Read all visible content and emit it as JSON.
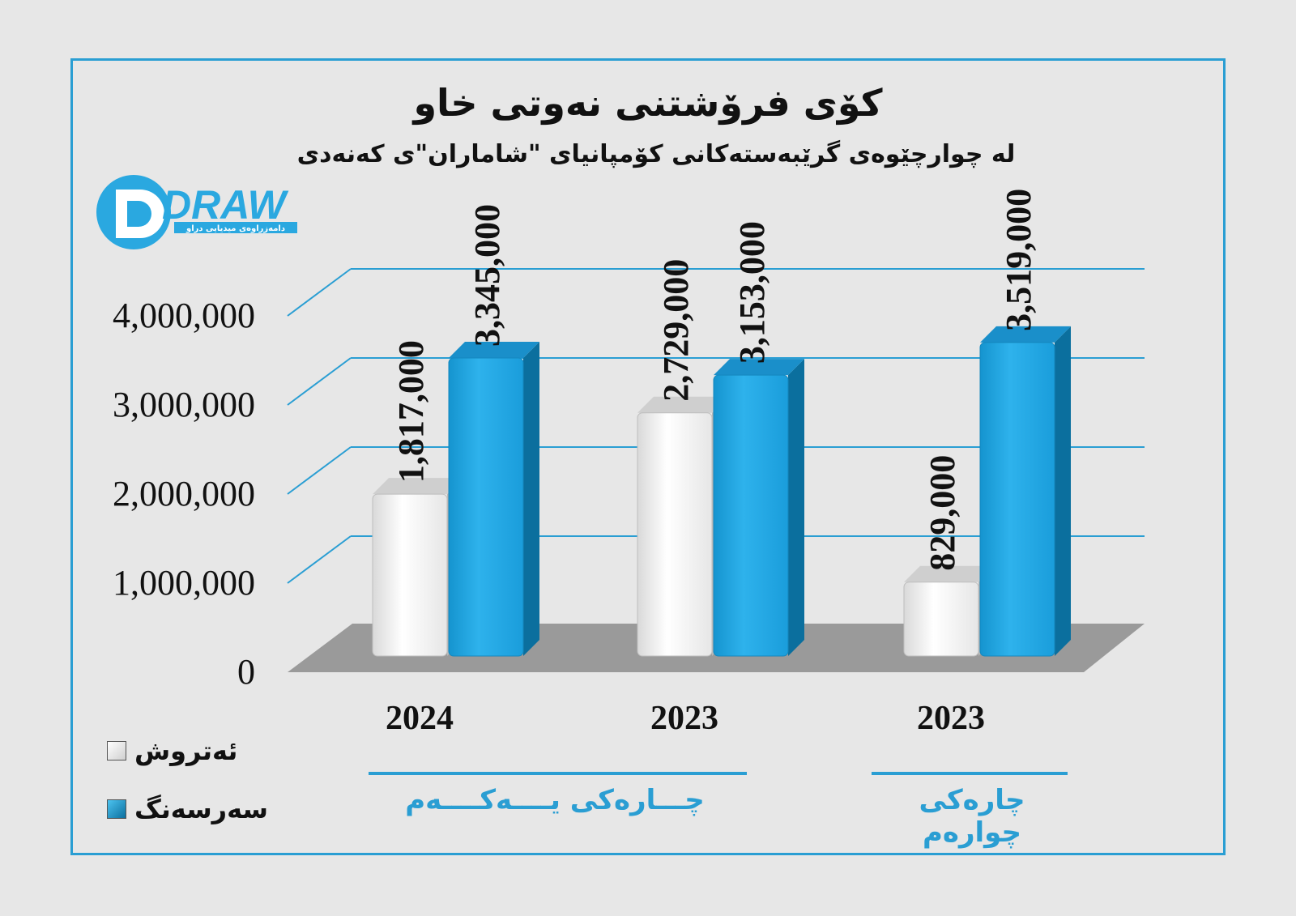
{
  "title": "کۆی فرۆشتنی نەوتی خاو",
  "subtitle": "لە چوارچێوەی گرێبەستەکانی کۆمپانیای \"شاماران\"ی کەنەدی",
  "logo": {
    "wordmark": "DRAW",
    "tagline": "دامەزراوەی میدیایی دراو"
  },
  "colors": {
    "series1": "#ffffff",
    "series2": "#1aa3e0",
    "accent": "#2a9ed3",
    "floor": "#999999"
  },
  "chart_data": {
    "type": "bar",
    "categories": [
      "2024",
      "2023",
      "2023"
    ],
    "series": [
      {
        "name": "ئەتروش",
        "values": [
          1817000,
          2729000,
          829000
        ],
        "labels": [
          "1,817,000",
          "2,729,000",
          "829,000"
        ]
      },
      {
        "name": "سەرسەنگ",
        "values": [
          3345000,
          3153000,
          3519000
        ],
        "labels": [
          "3,345,000",
          "3,153,000",
          "3,519,000"
        ]
      }
    ],
    "y_ticks": [
      "0",
      "1,000,000",
      "2,000,000",
      "3,000,000",
      "4,000,000"
    ],
    "ylim": [
      0,
      4000000
    ],
    "grid": true,
    "legend": "bottom-left",
    "groups": [
      {
        "label": "چـــارەکی یــــەکــــەم",
        "categories": [
          0,
          1
        ]
      },
      {
        "label": "چارەکی چوارەم",
        "categories": [
          2
        ]
      }
    ]
  }
}
